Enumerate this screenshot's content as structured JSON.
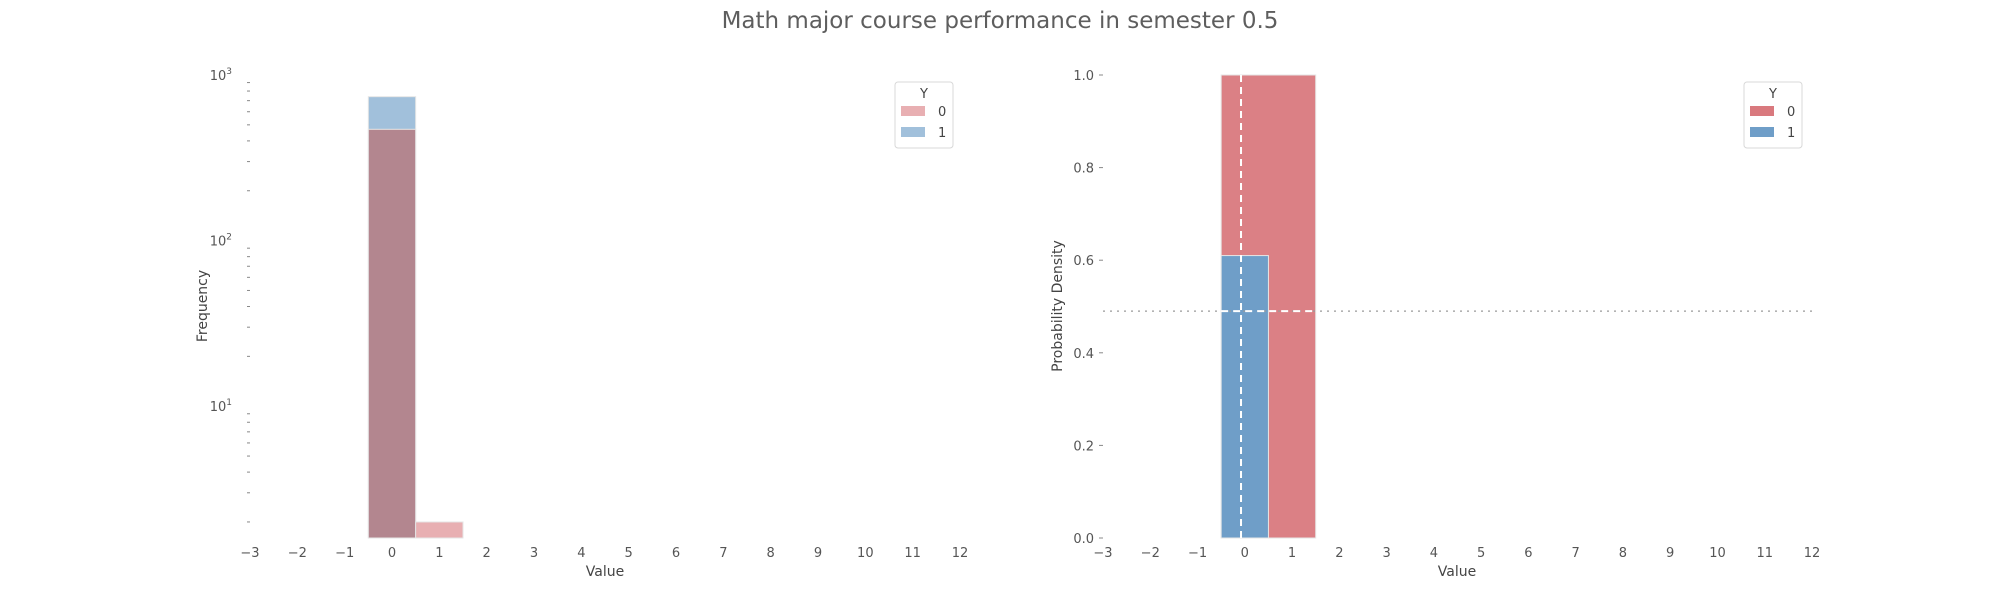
{
  "title": "Math major course performance in semester 0.5",
  "colors": {
    "class_0": "#d9797e",
    "class_1": "#6f9ec8",
    "overlap": "#b3868f"
  },
  "chart_data": [
    {
      "type": "bar",
      "subtype": "histogram",
      "xlabel": "Value",
      "ylabel": "Frequency",
      "yscale": "log",
      "xlim": [
        -3,
        12
      ],
      "ylim": [
        1,
        1000
      ],
      "x_ticks": [
        "−3",
        "−2",
        "−1",
        "0",
        "1",
        "2",
        "3",
        "4",
        "5",
        "6",
        "7",
        "8",
        "9",
        "10",
        "11",
        "12"
      ],
      "y_ticks": [
        "10",
        "10",
        "10"
      ],
      "y_tick_exponents": [
        "1",
        "2",
        "3"
      ],
      "legend": {
        "title": "Y",
        "entries": [
          "0",
          "1"
        ],
        "position": "top-right"
      },
      "bins": [
        [
          -0.5,
          0.5
        ],
        [
          0.5,
          1.5
        ]
      ],
      "series": [
        {
          "name": "0",
          "values": [
            470,
            2
          ]
        },
        {
          "name": "1",
          "values": [
            740,
            0
          ]
        }
      ]
    },
    {
      "type": "bar",
      "subtype": "histogram-density",
      "xlabel": "Value",
      "ylabel": "Probability Density",
      "xlim": [
        -3,
        12
      ],
      "ylim": [
        0,
        1.0
      ],
      "x_ticks": [
        "−3",
        "−2",
        "−1",
        "0",
        "1",
        "2",
        "3",
        "4",
        "5",
        "6",
        "7",
        "8",
        "9",
        "10",
        "11",
        "12"
      ],
      "y_ticks": [
        "0.0",
        "0.2",
        "0.4",
        "0.6",
        "0.8",
        "1.0"
      ],
      "legend": {
        "title": "Y",
        "entries": [
          "0",
          "1"
        ],
        "position": "top-right"
      },
      "series": [
        {
          "name": "0",
          "bins": [
            [
              -0.5,
              1.5
            ]
          ],
          "values": [
            1.0
          ]
        },
        {
          "name": "1",
          "bins": [
            [
              -0.5,
              0.5
            ]
          ],
          "values": [
            0.61
          ]
        }
      ],
      "reference_lines": {
        "vertical_x": -0.08,
        "horizontal_y": 0.49
      }
    }
  ]
}
